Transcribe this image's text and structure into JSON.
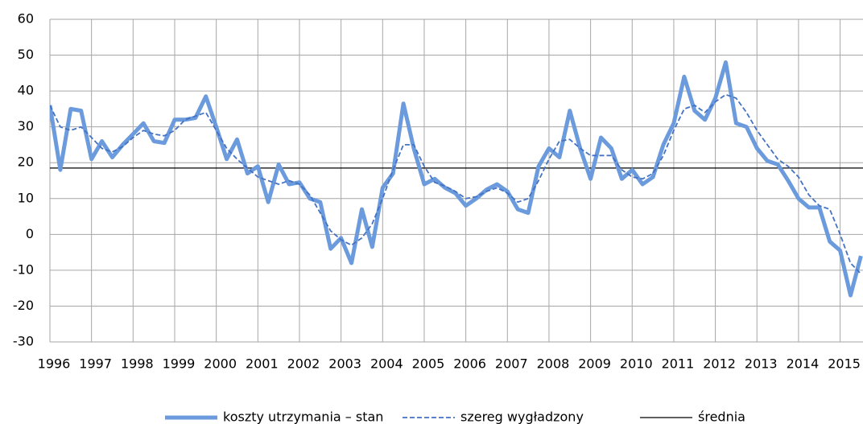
{
  "chart_data": {
    "type": "line",
    "x": [
      1996,
      1996.25,
      1996.5,
      1996.75,
      1997,
      1997.25,
      1997.5,
      1997.75,
      1998,
      1998.25,
      1998.5,
      1998.75,
      1999,
      1999.25,
      1999.5,
      1999.75,
      2000,
      2000.25,
      2000.5,
      2000.75,
      2001,
      2001.25,
      2001.5,
      2001.75,
      2002,
      2002.25,
      2002.5,
      2002.75,
      2003,
      2003.25,
      2003.5,
      2003.75,
      2004,
      2004.25,
      2004.5,
      2004.75,
      2005,
      2005.25,
      2005.5,
      2005.75,
      2006,
      2006.25,
      2006.5,
      2006.75,
      2007,
      2007.25,
      2007.5,
      2007.75,
      2008,
      2008.25,
      2008.5,
      2008.75,
      2009,
      2009.25,
      2009.5,
      2009.75,
      2010,
      2010.25,
      2010.5,
      2010.75,
      2011,
      2011.25,
      2011.5,
      2011.75,
      2012,
      2012.25,
      2012.5,
      2012.75,
      2013,
      2013.25,
      2013.5,
      2013.75,
      2014,
      2014.25,
      2014.5,
      2014.75,
      2015,
      2015.25,
      2015.5
    ],
    "series": [
      {
        "name": "koszty utrzymania – stan",
        "color": "#6b9bdc",
        "values": [
          36,
          18,
          35,
          34.5,
          21,
          26,
          21.5,
          25,
          28,
          31,
          26,
          25.5,
          32,
          32,
          32.5,
          38.5,
          30,
          21,
          26.5,
          17,
          19,
          9,
          19.5,
          14,
          14.5,
          10,
          9,
          -4,
          -1,
          -8,
          7,
          -3.5,
          13,
          17,
          36.5,
          24,
          14,
          15.5,
          13,
          11.5,
          8,
          10,
          12.5,
          14,
          12,
          7,
          6,
          19,
          24,
          21.5,
          34.5,
          24,
          15.5,
          27,
          24,
          15.5,
          18,
          14,
          16,
          25,
          31,
          44,
          34.5,
          32,
          38,
          48,
          31,
          30,
          24,
          20.5,
          19.5,
          15,
          10,
          7.5,
          7.5,
          -2,
          -4.5,
          -17,
          -6
        ]
      },
      {
        "name": "szereg wygładzony",
        "color": "#4472c4",
        "values": [
          36,
          30,
          29,
          30,
          27,
          24,
          23,
          24.5,
          27,
          29,
          28,
          27.5,
          29,
          32,
          33,
          34,
          29,
          24,
          21,
          18.5,
          16,
          15,
          14,
          15,
          14,
          11,
          6,
          1,
          -1.5,
          -3,
          -1,
          3,
          10,
          18,
          25,
          25,
          19,
          14.5,
          13.5,
          12,
          10,
          10.5,
          12,
          13,
          11.5,
          9,
          10,
          15,
          21,
          26,
          26.5,
          24,
          22,
          22,
          22,
          18,
          16,
          15.5,
          17,
          22,
          29,
          35,
          36,
          34,
          37,
          39,
          38,
          34,
          29,
          25,
          21,
          19,
          16,
          11,
          8,
          7,
          0,
          -8,
          -11
        ]
      }
    ],
    "mean_line": {
      "name": "średnia",
      "color": "#000000",
      "value": 18.5
    },
    "xlim": [
      1996,
      2015.55
    ],
    "xticks": [
      1996,
      1997,
      1998,
      1999,
      2000,
      2001,
      2002,
      2003,
      2004,
      2005,
      2006,
      2007,
      2008,
      2009,
      2010,
      2011,
      2012,
      2013,
      2014,
      2015
    ],
    "ylim": [
      -30,
      60
    ],
    "yticks": [
      -30,
      -20,
      -10,
      0,
      10,
      20,
      30,
      40,
      50,
      60
    ],
    "grid": true,
    "legend": "bottom"
  }
}
